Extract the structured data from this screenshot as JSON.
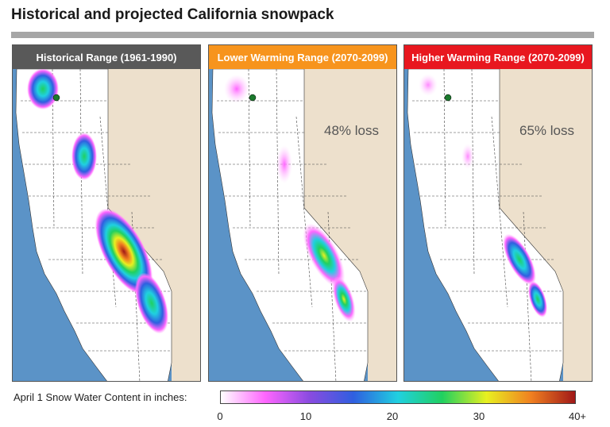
{
  "title": "Historical and projected California snowpack",
  "panels": [
    {
      "label": "Historical Range (1961-1990)",
      "header_color": "#595959",
      "loss_pct": null,
      "loss_text": ""
    },
    {
      "label": "Lower Warming Range (2070-2099)",
      "header_color": "#f7941d",
      "loss_pct": 48,
      "loss_text": "48% loss"
    },
    {
      "label": "Higher Warming Range (2070-2099)",
      "header_color": "#e8171f",
      "loss_pct": 65,
      "loss_text": "65% loss"
    }
  ],
  "legend": {
    "label": "April 1 Snow Water Content in inches:",
    "ticks": [
      "0",
      "10",
      "20",
      "30",
      "40+"
    ],
    "range": [
      0,
      40
    ],
    "colors": [
      "#ffffff",
      "#ff66ff",
      "#8a4be0",
      "#2f5fe0",
      "#20d0e0",
      "#20d060",
      "#e8f020",
      "#f08020",
      "#a01818"
    ]
  },
  "map_colors": {
    "ocean": "#5b93c7",
    "land": "#ffffff",
    "neighbor": "#ede0cc",
    "lake": "#1b7a2d"
  }
}
